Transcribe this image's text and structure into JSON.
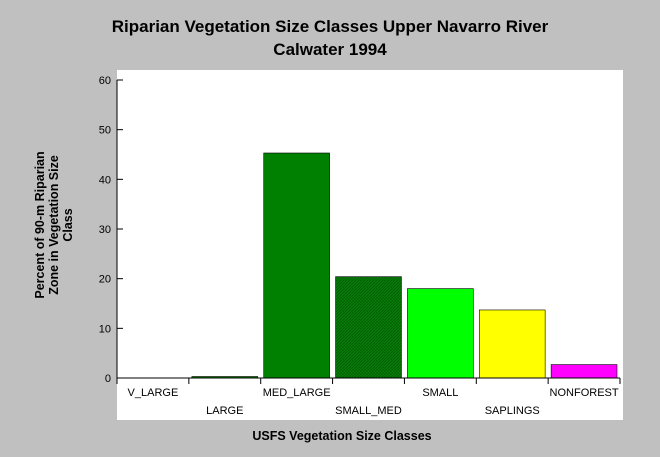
{
  "chart_data": {
    "type": "bar",
    "title": "Riparian Vegetation Size Classes Upper Navarro River",
    "subtitle": "Calwater 1994",
    "xlabel": "USFS Vegetation Size Classes",
    "ylabel_lines": [
      "Percent of 90-m Riparian",
      "Zone in Vegetation Size",
      "Class"
    ],
    "ylim": [
      0,
      60
    ],
    "yticks": [
      0,
      10,
      20,
      30,
      40,
      50,
      60
    ],
    "categories": [
      "V_LARGE",
      "LARGE",
      "MED_LARGE",
      "SMALL_MED",
      "SMALL",
      "SAPLINGS",
      "NONFOREST"
    ],
    "values": [
      0,
      0.3,
      45.3,
      20.4,
      18.0,
      13.7,
      2.7
    ],
    "colors": [
      "#008000",
      "#008000",
      "#008000",
      "#008000",
      "#00ff00",
      "#ffff00",
      "#ff00ff"
    ],
    "hatched": [
      false,
      false,
      false,
      true,
      false,
      false,
      false
    ],
    "grid": false,
    "legend": "none"
  }
}
